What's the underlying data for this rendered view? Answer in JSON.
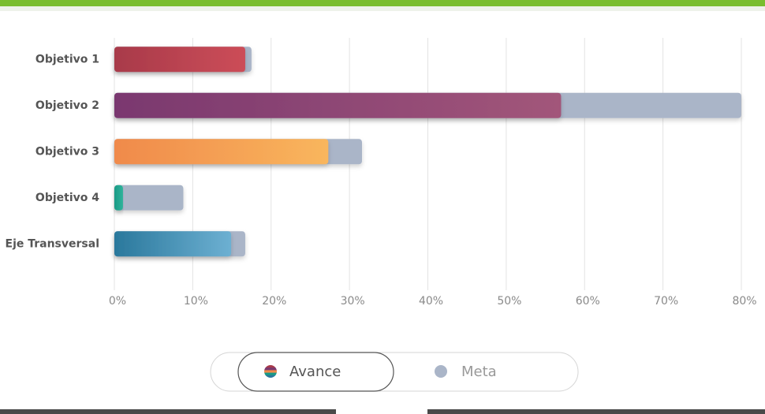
{
  "chart_data": {
    "type": "bar",
    "orientation": "horizontal",
    "categories": [
      "Objetivo 1",
      "Objetivo 2",
      "Objetivo 3",
      "Objetivo 4",
      "Eje Transversal"
    ],
    "series": [
      {
        "name": "Meta",
        "color": "#aab5c8",
        "values": [
          17.5,
          80,
          31.6,
          8.8,
          16.7
        ]
      },
      {
        "name": "Avance",
        "colors": [
          [
            "#a83a4a",
            "#cc4d58"
          ],
          [
            "#7a386f",
            "#a2567a"
          ],
          [
            "#f08a4b",
            "#f9b65d"
          ],
          [
            "#1a9a86",
            "#2fb39a"
          ],
          [
            "#2a789c",
            "#6db0d2"
          ]
        ],
        "values": [
          16.7,
          57,
          27.3,
          1.1,
          14.9
        ]
      }
    ],
    "xlim": [
      0,
      80
    ],
    "xticks": [
      {
        "value": 0,
        "label": "0%"
      },
      {
        "value": 10,
        "label": "10%"
      },
      {
        "value": 20,
        "label": "20%"
      },
      {
        "value": 30,
        "label": "30%"
      },
      {
        "value": 40,
        "label": "40%"
      },
      {
        "value": 50,
        "label": "50%"
      },
      {
        "value": 60,
        "label": "60%"
      },
      {
        "value": 70,
        "label": "70%"
      },
      {
        "value": 80,
        "label": "80%"
      }
    ],
    "grid": true,
    "legend": "bottom"
  }
}
